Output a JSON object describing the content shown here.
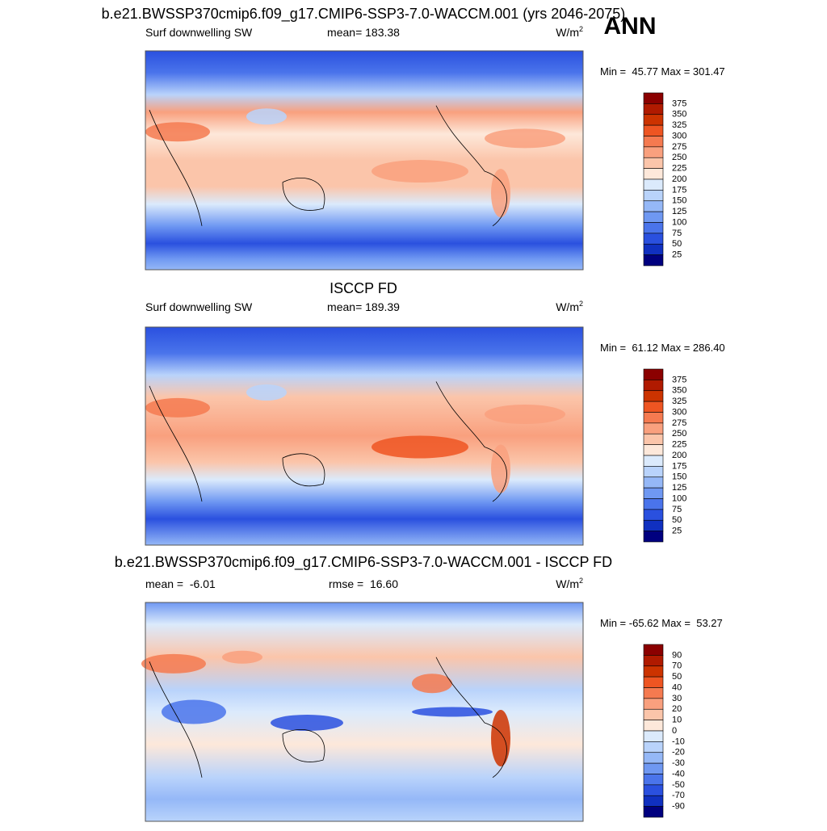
{
  "header": {
    "label": "ANN"
  },
  "panels": [
    {
      "title": "b.e21.BWSSP370cmip6.f09_g17.CMIP6-SSP3-7.0-WACCM.001 (yrs 2046-2075)",
      "left": "Surf downwelling SW",
      "center": "mean= 183.38",
      "units": {
        "base": "W/m",
        "sup": "2"
      },
      "min_max": "Min =  45.77 Max = 301.47",
      "colorbar": {
        "labels": [
          375,
          350,
          325,
          300,
          275,
          250,
          225,
          200,
          175,
          150,
          125,
          100,
          75,
          50,
          25
        ],
        "colors": [
          "#8b0000",
          "#b01a00",
          "#cc3300",
          "#ee5522",
          "#f57a50",
          "#f9a07e",
          "#fbc5aa",
          "#fde8da",
          "#dbeafc",
          "#b9d3fb",
          "#95b8f7",
          "#6f98f2",
          "#4a74eb",
          "#2a50df",
          "#1030c0",
          "#00007f"
        ]
      }
    },
    {
      "title": "ISCCP FD",
      "left": "Surf downwelling SW",
      "center": "mean= 189.39",
      "units": {
        "base": "W/m",
        "sup": "2"
      },
      "min_max": "Min =  61.12 Max = 286.40",
      "colorbar": {
        "labels": [
          375,
          350,
          325,
          300,
          275,
          250,
          225,
          200,
          175,
          150,
          125,
          100,
          75,
          50,
          25
        ],
        "colors": [
          "#8b0000",
          "#b01a00",
          "#cc3300",
          "#ee5522",
          "#f57a50",
          "#f9a07e",
          "#fbc5aa",
          "#fde8da",
          "#dbeafc",
          "#b9d3fb",
          "#95b8f7",
          "#6f98f2",
          "#4a74eb",
          "#2a50df",
          "#1030c0",
          "#00007f"
        ]
      }
    },
    {
      "title": "b.e21.BWSSP370cmip6.f09_g17.CMIP6-SSP3-7.0-WACCM.001 - ISCCP FD",
      "left": "mean =  -6.01",
      "center": "rmse =  16.60",
      "units": {
        "base": "W/m",
        "sup": "2"
      },
      "min_max": "Min = -65.62 Max =  53.27",
      "colorbar": {
        "labels": [
          90,
          70,
          50,
          40,
          30,
          20,
          10,
          0,
          -10,
          -20,
          -30,
          -40,
          -50,
          -70,
          -90
        ],
        "colors": [
          "#8b0000",
          "#b01a00",
          "#cc3300",
          "#ee5522",
          "#f57a50",
          "#f9a07e",
          "#fbc5aa",
          "#fde8da",
          "#dbeafc",
          "#b9d3fb",
          "#95b8f7",
          "#6f98f2",
          "#4a74eb",
          "#2a50df",
          "#1030c0",
          "#00007f"
        ]
      }
    }
  ]
}
